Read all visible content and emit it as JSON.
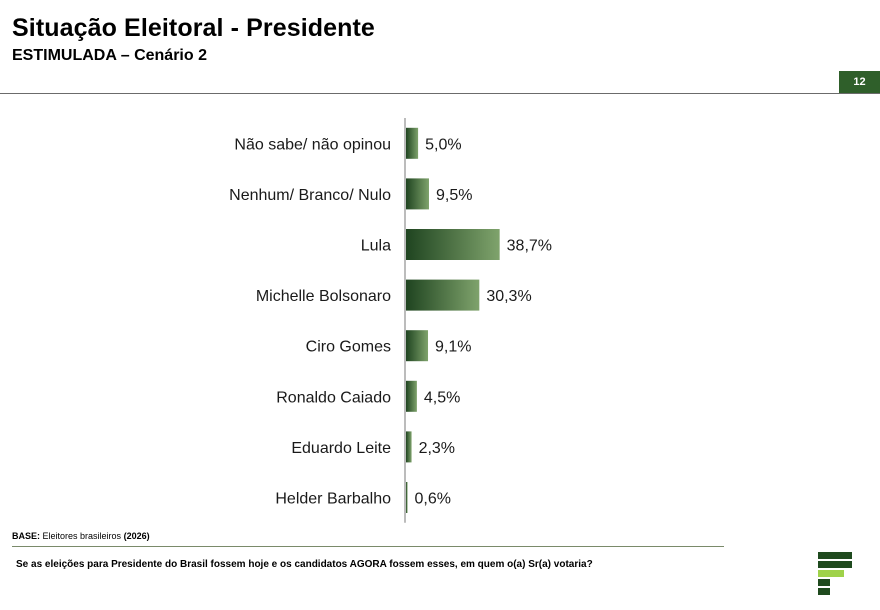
{
  "header": {
    "title": "Situação Eleitoral - Presidente",
    "subtitle": "ESTIMULADA – Cenário 2",
    "page_number": "12"
  },
  "chart_data": {
    "type": "bar",
    "orientation": "horizontal",
    "categories": [
      "Não sabe/ não opinou",
      "Nenhum/ Branco/ Nulo",
      "Lula",
      "Michelle Bolsonaro",
      "Ciro Gomes",
      "Ronaldo Caiado",
      "Eduardo Leite",
      "Helder Barbalho"
    ],
    "values": [
      5.0,
      9.5,
      38.7,
      30.3,
      9.1,
      4.5,
      2.3,
      0.6
    ],
    "value_labels": [
      "5,0%",
      "9,5%",
      "38,7%",
      "30,3%",
      "9,1%",
      "4,5%",
      "2,3%",
      "0,6%"
    ],
    "title": "Situação Eleitoral - Presidente",
    "xlabel": "",
    "ylabel": "",
    "xlim": [
      0,
      40
    ],
    "grid": false,
    "bar_color_dark": "#1f4420",
    "bar_color_light": "#7fa36c"
  },
  "footer": {
    "base_label": "BASE:",
    "base_text": "Eleitores brasileiros",
    "base_year": "(2026)",
    "question": "Se as eleições para Presidente do Brasil fossem hoje e os candidatos AGORA fossem esses, em quem o(a) Sr(a) votaria?"
  },
  "colors": {
    "accent": "#2f5f2a",
    "logo_dark": "#1f4a1e",
    "logo_light": "#9fd24a"
  }
}
